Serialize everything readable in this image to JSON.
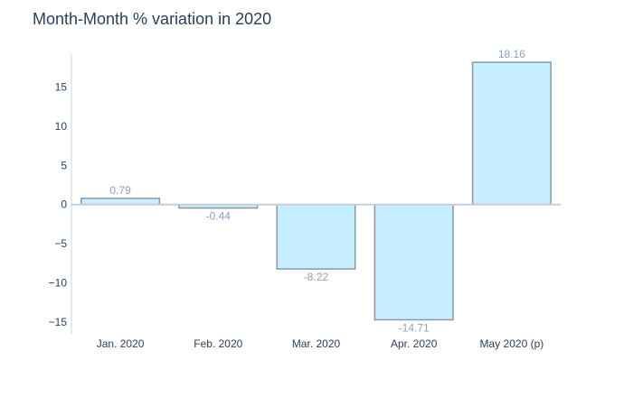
{
  "chart_data": {
    "type": "bar",
    "title": "Month-Month % variation in 2020",
    "xlabel": "",
    "ylabel": "",
    "categories": [
      "Jan. 2020",
      "Feb. 2020",
      "Mar. 2020",
      "Apr. 2020",
      "May 2020 (p)"
    ],
    "values": [
      0.79,
      -0.44,
      -8.22,
      -14.71,
      18.16
    ],
    "data_labels": [
      "0.79",
      "-0.44",
      "-8.22",
      "-14.71",
      "18.16"
    ],
    "y_ticks": [
      -15,
      -10,
      -5,
      0,
      5,
      10,
      15
    ],
    "y_tick_labels": [
      "−15",
      "−10",
      "−5",
      "0",
      "5",
      "10",
      "15"
    ],
    "ylim": [
      -16.5,
      19.2
    ],
    "grid": false,
    "legend": "none",
    "colors": {
      "bar_fill": "#c6efff",
      "bar_stroke": "#8b97a8",
      "zero_line": "#c7ced9",
      "axis_line": "#c9d3ea"
    }
  }
}
